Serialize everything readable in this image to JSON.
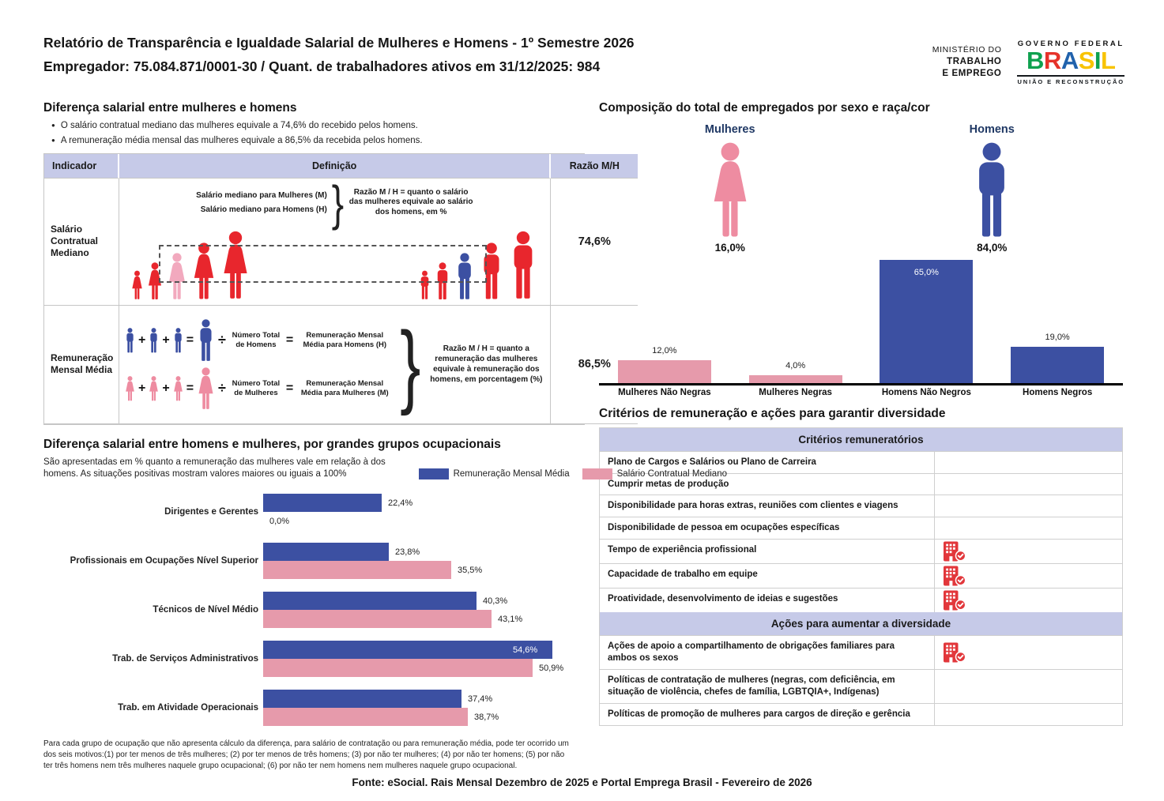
{
  "header": {
    "title_line1": "Relatório de Transparência e Igualdade Salarial de Mulheres e Homens - 1º Semestre 2026",
    "title_line2": "Empregador: 75.084.871/0001-30 / Quant. de trabalhadores ativos em 31/12/2025: 984",
    "ministry": [
      "MINISTÉRIO DO",
      "TRABALHO",
      "E EMPREGO"
    ],
    "gov": {
      "top": "GOVERNO FEDERAL",
      "brand": "BRASIL",
      "bottom": "UNIÃO E RECONSTRUÇÃO"
    }
  },
  "colors": {
    "red": "#E8262D",
    "pink_figure": "#EE8CA1",
    "pink_highlight": "#F2A9BE",
    "blue": "#3C50A2",
    "pink_bar": "#E69AAB",
    "lavender": "#C6CAE8",
    "navy_label": "#1F3864",
    "icon_red": "#E2373B"
  },
  "left": {
    "salary_gap": {
      "title": "Diferença salarial entre mulheres e homens",
      "bullets": [
        "O salário contratual mediano das mulheres equivale a 74,6% do recebido pelos homens.",
        "A remuneração média mensal das mulheres equivale a 86,5% da recebida pelos homens."
      ],
      "table": {
        "headers": [
          "Indicador",
          "Definição",
          "Razão M/H"
        ],
        "operators": {
          "plus": "+",
          "equals": "=",
          "divide": "÷"
        },
        "row1": {
          "indicator": "Salário Contratual Mediano",
          "def_line1": "Salário mediano para Mulheres (M)",
          "def_line2": "Salário mediano para Homens (H)",
          "note": "Razão M / H = quanto o salário das mulheres equivale ao salário dos homens, em %",
          "ratio": "74,6%"
        },
        "row2": {
          "indicator": "Remuneração Mensal Média",
          "men_divisor": "Número Total de Homens",
          "men_result": "Remuneração Mensal Média para Homens (H)",
          "women_divisor": "Número Total de Mulheres",
          "women_result": "Remuneração Mensal Média para Mulheres (M)",
          "note": "Razão M / H = quanto a remuneração das mulheres equivale à remuneração dos homens, em porcentagem (%)",
          "ratio": "86,5%"
        }
      }
    },
    "occupational": {
      "title": "Diferença salarial entre homens e mulheres, por grandes grupos ocupacionais",
      "subtitle": "São apresentadas em % quanto a remuneração das mulheres vale em relação à dos homens. As situações positivas mostram valores maiores ou iguais a 100%",
      "footnote": "Para cada grupo de ocupação que não apresenta cálculo da diferença, para salário de contratação ou para remuneração média, pode ter ocorrido um dos seis motivos:(1) por ter menos de três mulheres; (2) por ter menos de três homens; (3) por não ter mulheres; (4) por não ter homens; (5) por não ter três homens nem três mulheres naquele grupo ocupacional; (6) por não ter nem homens nem mulheres naquele grupo ocupacional."
    }
  },
  "right": {
    "composition": {
      "title": "Composição do total de empregados por sexo e raça/cor",
      "women_label": "Mulheres",
      "women_pct": "16,0%",
      "men_label": "Homens",
      "men_pct": "84,0%"
    },
    "criteria": {
      "title": "Critérios de remuneração e ações para garantir diversidade",
      "sections": [
        {
          "header": "Critérios remuneratórios",
          "rows": [
            {
              "text": "Plano de Cargos e Salários ou Plano de Carreira",
              "checked": false
            },
            {
              "text": "Cumprir metas de produção",
              "checked": false
            },
            {
              "text": "Disponibilidade para horas extras, reuniões com clientes e viagens",
              "checked": false
            },
            {
              "text": "Disponibilidade de pessoa em ocupações específicas",
              "checked": false
            },
            {
              "text": "Tempo de experiência profissional",
              "checked": true
            },
            {
              "text": "Capacidade de trabalho em equipe",
              "checked": true
            },
            {
              "text": "Proatividade, desenvolvimento de ideias e sugestões",
              "checked": true
            }
          ]
        },
        {
          "header": "Ações para aumentar a diversidade",
          "rows": [
            {
              "text": "Ações de apoio a compartilhamento de obrigações familiares para ambos os sexos",
              "checked": true
            },
            {
              "text": "Políticas de contratação de mulheres (negras, com deficiência, em situação de violência, chefes de família, LGBTQIA+, Indígenas)",
              "checked": false
            },
            {
              "text": "Políticas de promoção de mulheres para cargos de direção e gerência",
              "checked": false
            }
          ]
        }
      ]
    }
  },
  "chart_data": [
    {
      "type": "bar",
      "title": "Composição do total de empregados por sexo e raça/cor",
      "categories": [
        "Mulheres Não Negras",
        "Mulheres Negras",
        "Homens Não Negros",
        "Homens Negros"
      ],
      "values": [
        12.0,
        4.0,
        65.0,
        19.0
      ],
      "labels": [
        "12,0%",
        "4,0%",
        "65,0%",
        "19,0%"
      ],
      "colors": [
        "#E69AAB",
        "#E69AAB",
        "#3C50A2",
        "#3C50A2"
      ],
      "xlabel": "",
      "ylabel": "",
      "ylim": [
        0,
        66
      ],
      "grid": false,
      "legend": false
    },
    {
      "type": "bar",
      "orientation": "horizontal",
      "title": "Diferença salarial entre homens e mulheres, por grandes grupos ocupacionais",
      "categories": [
        "Dirigentes e Gerentes",
        "Profissionais em Ocupações Nível Superior",
        "Técnicos de Nível Médio",
        "Trab. de Serviços Administrativos",
        "Trab. em Atividade Operacionais"
      ],
      "series": [
        {
          "name": "Remuneração Mensal Média",
          "color": "#3C50A2",
          "values": [
            22.4,
            23.8,
            40.3,
            54.6,
            37.4
          ],
          "labels": [
            "22,4%",
            "23,8%",
            "40,3%",
            "54,6%",
            "37,4%"
          ]
        },
        {
          "name": "Salário Contratual Mediano",
          "color": "#E69AAB",
          "values": [
            0.0,
            35.5,
            43.1,
            50.9,
            38.7
          ],
          "labels": [
            "0,0%",
            "35,5%",
            "43,1%",
            "50,9%",
            "38,7%"
          ]
        }
      ],
      "xlim": [
        0,
        60
      ],
      "grid": false,
      "legend_position": "top"
    }
  ],
  "footer": {
    "source": "Fonte: eSocial. Rais Mensal Dezembro de 2025 e Portal Emprega Brasil - Fevereiro de 2026"
  }
}
